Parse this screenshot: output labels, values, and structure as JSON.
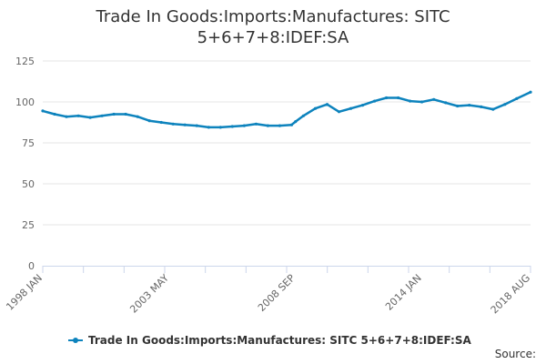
{
  "chart_data": {
    "type": "line",
    "title_lines": [
      "Trade In Goods:Imports:Manufactures: SITC",
      "5+6+7+8:IDEF:SA"
    ],
    "xlabel": "",
    "ylabel": "",
    "ylim": [
      0,
      125
    ],
    "yticks": [
      0,
      25,
      50,
      75,
      100,
      125
    ],
    "x_tick_labels": [
      "1998 JAN",
      "2003 MAY",
      "2008 SEP",
      "2014 JAN",
      "2018 AUG"
    ],
    "x_range": [
      "1998-01",
      "2018-08"
    ],
    "grid": "horizontal",
    "legend_position": "bottom",
    "color": "#0d83bd",
    "credits": "Source:",
    "series": [
      {
        "name": "Trade In Goods:Imports:Manufactures: SITC 5+6+7+8:IDEF:SA",
        "x": [
          "1998-01",
          "1998-07",
          "1999-01",
          "1999-07",
          "2000-01",
          "2000-07",
          "2001-01",
          "2001-07",
          "2002-01",
          "2002-07",
          "2003-01",
          "2003-07",
          "2004-01",
          "2004-07",
          "2005-01",
          "2005-07",
          "2006-01",
          "2006-07",
          "2007-01",
          "2007-07",
          "2008-01",
          "2008-07",
          "2008-09",
          "2009-01",
          "2009-07",
          "2010-01",
          "2010-07",
          "2011-01",
          "2011-07",
          "2012-01",
          "2012-07",
          "2013-01",
          "2013-07",
          "2014-01",
          "2014-07",
          "2015-01",
          "2015-07",
          "2016-01",
          "2016-07",
          "2017-01",
          "2017-07",
          "2018-01",
          "2018-08"
        ],
        "values": [
          94.5,
          92.5,
          91,
          91.5,
          90.5,
          91.5,
          92.5,
          92.5,
          91,
          88.5,
          87.5,
          86.5,
          86,
          85.5,
          84.5,
          84.5,
          85,
          85.5,
          86.5,
          85.5,
          85.5,
          86,
          88,
          91.5,
          96,
          98.5,
          94,
          96,
          98,
          100.5,
          102.5,
          102.5,
          100.5,
          100,
          101.5,
          99.5,
          97.5,
          98,
          97,
          95.5,
          98.5,
          102,
          106
        ]
      }
    ]
  }
}
